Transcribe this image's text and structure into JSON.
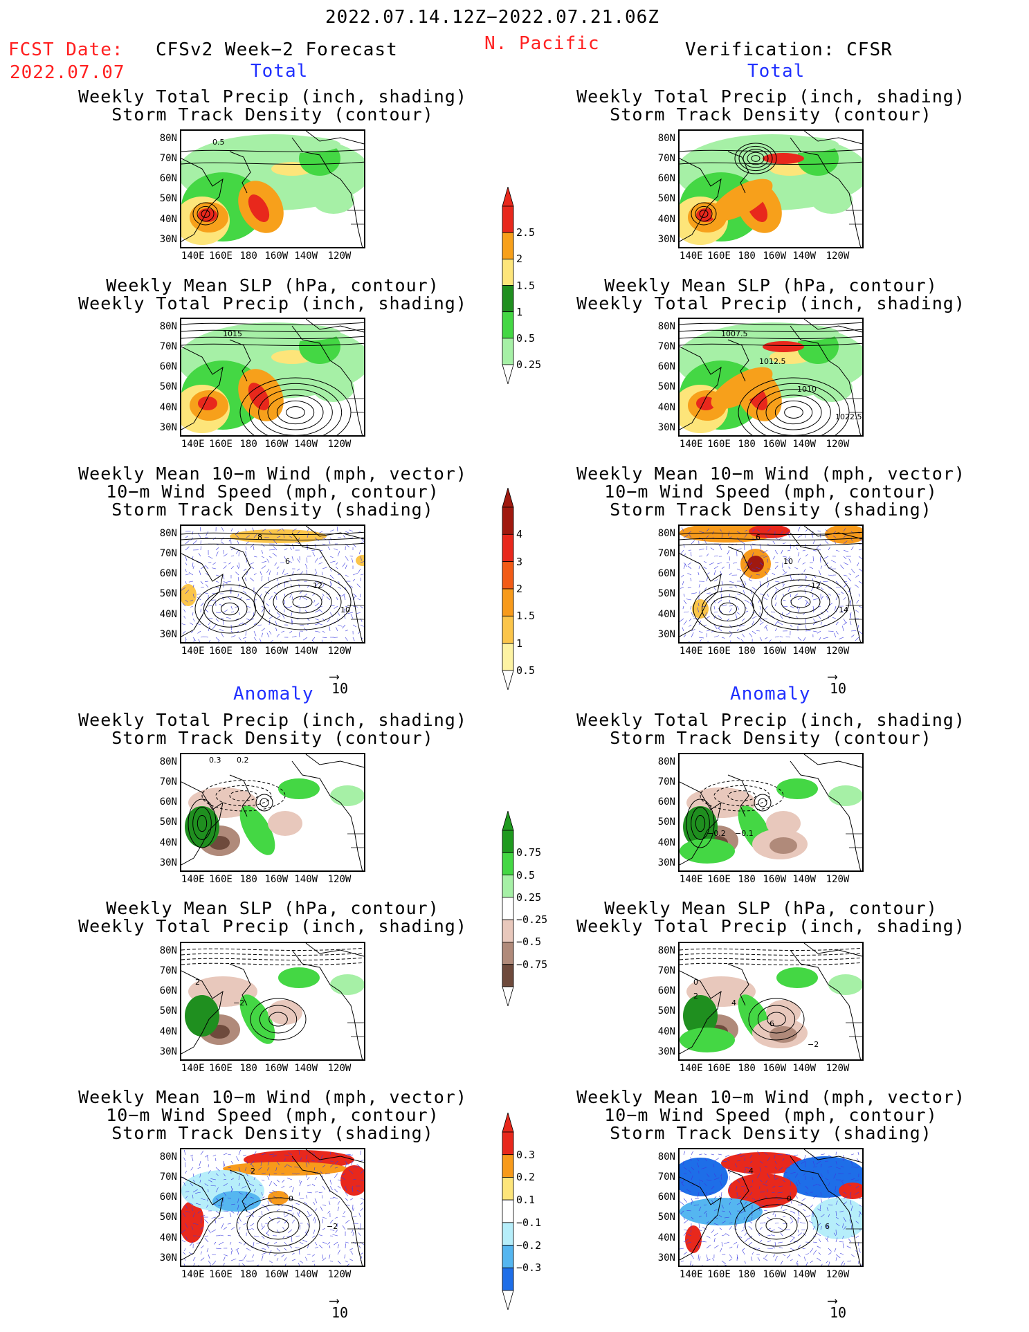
{
  "header": {
    "period": "2022.07.14.12Z−2022.07.21.06Z",
    "fcst_label": "FCST Date:",
    "fcst_date": "2022.07.07",
    "forecast_label": "CFSv2 Week−2 Forecast",
    "region": "N. Pacific",
    "verification_label": "Verification: CFSR"
  },
  "sections": {
    "total": "Total",
    "anomaly": "Anomaly"
  },
  "panel_titles": {
    "precip_storm": [
      "Weekly Total Precip (inch, shading)",
      "Storm Track Density (contour)"
    ],
    "slp_precip": [
      "Weekly Mean SLP (hPa, contour)",
      "Weekly Total Precip (inch, shading)"
    ],
    "wind_storm": [
      "Weekly Mean 10−m Wind (mph, vector)",
      "10−m Wind Speed (mph, contour)",
      "Storm Track Density (shading)"
    ]
  },
  "axes": {
    "lat_labels": [
      "80N",
      "70N",
      "60N",
      "50N",
      "40N",
      "30N"
    ],
    "lon_labels": [
      "140E",
      "160E",
      "180",
      "160W",
      "140W",
      "120W"
    ]
  },
  "vector_ref": "10",
  "colorbars": {
    "precip_total": {
      "labels": [
        "2.5",
        "2",
        "1.5",
        "1",
        "0.5",
        "0.25"
      ],
      "colors": [
        "#e8281c",
        "#f7a01b",
        "#fde57a",
        "#1f8f1f",
        "#44d744",
        "#a6f0a6"
      ]
    },
    "storm_total": {
      "labels": [
        "4",
        "3",
        "2",
        "1.5",
        "1",
        "0.5"
      ],
      "colors": [
        "#a0190f",
        "#e8281c",
        "#f25b16",
        "#f79a1b",
        "#fbc54a",
        "#fdf3a3"
      ]
    },
    "precip_anom": {
      "labels": [
        "0.75",
        "0.5",
        "0.25",
        "−0.25",
        "−0.5",
        "−0.75"
      ],
      "colors": [
        "#1f9a1f",
        "#44d744",
        "#a6f0a6",
        "#ffffff",
        "#e8c8bc",
        "#b08a7a",
        "#6e4a3c"
      ]
    },
    "storm_anom": {
      "labels": [
        "0.3",
        "0.2",
        "0.1",
        "−0.1",
        "−0.2",
        "−0.3"
      ],
      "colors": [
        "#e8281c",
        "#f79a1b",
        "#fde57a",
        "#ffffff",
        "#b6eefa",
        "#55b6f0",
        "#1e6ee8"
      ]
    }
  },
  "contour_labels": {
    "fc_precip_total": [
      "0.5"
    ],
    "fc_slp_total": [
      "1015"
    ],
    "fc_wind_total": [
      "8",
      "6",
      "12",
      "10"
    ],
    "ver_slp_total": [
      "1007.5",
      "1012.5",
      "1010",
      "1022.5"
    ],
    "ver_wind_total": [
      "6",
      "10",
      "12",
      "14"
    ],
    "fc_precip_anom": [
      "0.3",
      "0.2"
    ],
    "ver_precip_anom": [
      "−0.2",
      "−0.1"
    ],
    "fc_slp_anom": [
      "2",
      "−2"
    ],
    "ver_slp_anom": [
      "0",
      "4",
      "6",
      "−2",
      "2"
    ],
    "fc_wind_anom": [
      "2",
      "0",
      "−2"
    ],
    "ver_wind_anom": [
      "4",
      "0",
      "6"
    ]
  }
}
